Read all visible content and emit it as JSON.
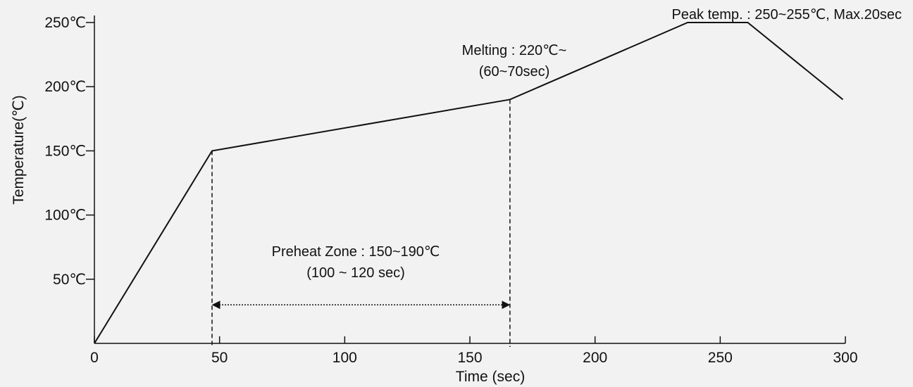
{
  "chart_data": {
    "type": "line",
    "xlabel": "Time (sec)",
    "ylabel": "Temperature(℃)",
    "xlim": [
      0,
      300
    ],
    "ylim": [
      0,
      250
    ],
    "x_ticks": [
      {
        "value": 0,
        "label": "0"
      },
      {
        "value": 50,
        "label": "50"
      },
      {
        "value": 100,
        "label": "100"
      },
      {
        "value": 150,
        "label": "150"
      },
      {
        "value": 200,
        "label": "200"
      },
      {
        "value": 250,
        "label": "250"
      },
      {
        "value": 300,
        "label": "300"
      }
    ],
    "y_ticks": [
      {
        "value": 50,
        "label": "50℃"
      },
      {
        "value": 100,
        "label": "100℃"
      },
      {
        "value": 150,
        "label": "150℃"
      },
      {
        "value": 200,
        "label": "200℃"
      },
      {
        "value": 250,
        "label": "250℃"
      }
    ],
    "grid": false,
    "series": [
      {
        "x": [
          0,
          47,
          166,
          237,
          261,
          299
        ],
        "y": [
          0,
          150,
          190,
          250,
          250,
          190
        ]
      }
    ],
    "reference_lines": [
      {
        "x": 47,
        "y_from": 0,
        "y_to": 150,
        "style": "dashed"
      },
      {
        "x": 166,
        "y_from": 0,
        "y_to": 190,
        "style": "dashed"
      }
    ],
    "span_arrow": {
      "x_from": 47,
      "x_to": 166,
      "y": 30,
      "style": "dotted",
      "double_headed": true
    },
    "annotations": [
      {
        "lines": [
          "Preheat Zone : 150~190℃",
          "(100 ~ 120 sec)"
        ]
      },
      {
        "lines": [
          "Melting : 220℃~",
          "(60~70sec)"
        ]
      },
      {
        "lines": [
          "Peak temp. : 250~255℃, Max.20sec"
        ]
      }
    ],
    "line_color": "#111111",
    "background": "#f2f2f2"
  }
}
